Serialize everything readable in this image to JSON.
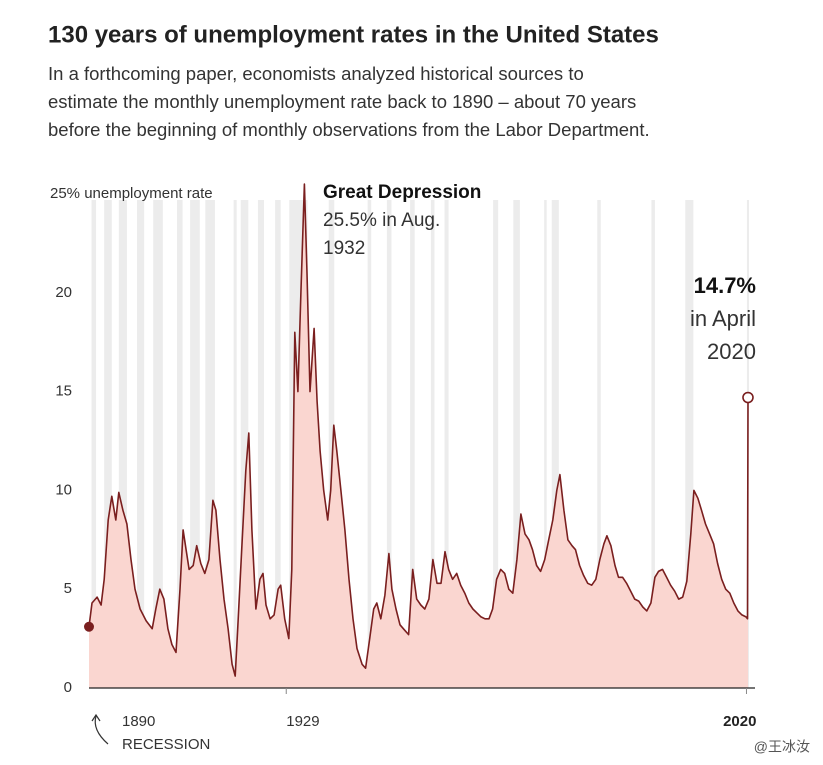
{
  "title": "130 years of unemployment rates in the United States",
  "subtitle": [
    "In a forthcoming paper, economists analyzed historical sources to",
    "estimate the monthly unemployment rate back to 1890 – about 70 years",
    "before the beginning of monthly observations from the Labor Department."
  ],
  "watermark": "@王冰汝",
  "chart_data": {
    "type": "area",
    "x": [
      1890.0,
      1890.6,
      1891.6,
      1892.4,
      1893.0,
      1893.8,
      1894.5,
      1895.3,
      1895.9,
      1896.7,
      1897.5,
      1898.3,
      1899.1,
      1900.1,
      1901.3,
      1902.5,
      1903.2,
      1904.0,
      1904.8,
      1905.6,
      1906.4,
      1907.2,
      1908.0,
      1908.6,
      1909.2,
      1909.8,
      1910.6,
      1911.3,
      1912.1,
      1912.9,
      1913.7,
      1914.5,
      1915.1,
      1915.9,
      1916.7,
      1917.5,
      1918.3,
      1918.9,
      1919.4,
      1920.2,
      1921.0,
      1921.6,
      1922.2,
      1923.0,
      1923.8,
      1924.4,
      1925.0,
      1925.8,
      1926.6,
      1927.4,
      1927.9,
      1928.7,
      1929.5,
      1930.1,
      1930.7,
      1931.3,
      1931.9,
      1932.6,
      1933.1,
      1933.7,
      1934.5,
      1935.1,
      1935.7,
      1936.4,
      1937.2,
      1937.8,
      1938.4,
      1939.0,
      1939.8,
      1940.6,
      1941.4,
      1942.2,
      1943.0,
      1944.0,
      1944.7,
      1945.5,
      1946.3,
      1946.9,
      1947.7,
      1948.5,
      1949.3,
      1949.9,
      1950.7,
      1951.5,
      1952.5,
      1953.2,
      1954.0,
      1954.8,
      1955.6,
      1956.4,
      1957.2,
      1958.0,
      1958.8,
      1959.6,
      1960.4,
      1961.1,
      1961.9,
      1962.7,
      1963.5,
      1964.3,
      1965.1,
      1965.9,
      1966.7,
      1967.5,
      1968.3,
      1969.1,
      1969.8,
      1970.6,
      1971.4,
      1972.2,
      1973.0,
      1973.8,
      1974.6,
      1975.4,
      1976.2,
      1977.0,
      1977.7,
      1978.5,
      1979.3,
      1980.1,
      1980.9,
      1981.7,
      1982.5,
      1983.1,
      1983.9,
      1984.7,
      1985.5,
      1986.2,
      1987.0,
      1987.8,
      1988.6,
      1989.4,
      1990.2,
      1991.0,
      1991.8,
      1992.4,
      1993.2,
      1994.0,
      1994.7,
      1995.5,
      1996.3,
      1997.1,
      1997.9,
      1998.7,
      1999.5,
      2000.3,
      2001.1,
      2001.9,
      2002.6,
      2003.4,
      2004.2,
      2005.0,
      2005.8,
      2006.6,
      2007.4,
      2008.2,
      2009.0,
      2009.6,
      2010.4,
      2011.1,
      2011.9,
      2012.7,
      2013.5,
      2014.3,
      2015.1,
      2015.9,
      2016.7,
      2017.5,
      2018.3,
      2019.1,
      2019.9,
      2020.2,
      2020.3
    ],
    "series": [
      {
        "color": "#7a1f1f",
        "fill": "#fad6d0",
        "values": [
          3.1,
          4.3,
          4.6,
          4.2,
          5.5,
          8.5,
          9.7,
          8.5,
          9.9,
          9.0,
          8.3,
          6.5,
          5.0,
          4.0,
          3.4,
          3.0,
          4.0,
          5.0,
          4.5,
          3.0,
          2.2,
          1.8,
          5.0,
          8.0,
          7.0,
          6.0,
          6.2,
          7.2,
          6.3,
          5.8,
          6.5,
          9.5,
          9.0,
          6.5,
          4.5,
          3.0,
          1.2,
          0.6,
          3.0,
          7.0,
          11.0,
          12.9,
          8.0,
          4.0,
          5.5,
          5.8,
          4.2,
          3.5,
          3.7,
          5.0,
          5.2,
          3.5,
          2.5,
          6.0,
          18.0,
          15.0,
          20.0,
          25.5,
          21.0,
          15.0,
          18.2,
          14.5,
          12.0,
          10.0,
          8.5,
          10.0,
          13.3,
          12.0,
          10.0,
          8.0,
          5.5,
          3.5,
          2.0,
          1.2,
          1.0,
          2.5,
          4.0,
          4.3,
          3.5,
          4.7,
          6.8,
          5.0,
          4.0,
          3.2,
          2.9,
          2.7,
          6.0,
          4.5,
          4.2,
          4.0,
          4.5,
          6.5,
          5.3,
          5.3,
          6.9,
          6.0,
          5.5,
          5.8,
          5.2,
          4.8,
          4.3,
          4.0,
          3.8,
          3.6,
          3.5,
          3.5,
          4.0,
          5.5,
          6.0,
          5.8,
          5.0,
          4.8,
          6.5,
          8.8,
          7.8,
          7.5,
          7.0,
          6.2,
          5.9,
          6.5,
          7.5,
          8.5,
          10.0,
          10.8,
          9.0,
          7.5,
          7.2,
          7.0,
          6.2,
          5.7,
          5.3,
          5.2,
          5.5,
          6.5,
          7.3,
          7.7,
          7.2,
          6.2,
          5.6,
          5.6,
          5.3,
          4.9,
          4.5,
          4.4,
          4.1,
          3.9,
          4.3,
          5.6,
          5.9,
          6.0,
          5.6,
          5.2,
          4.9,
          4.5,
          4.6,
          5.4,
          7.8,
          10.0,
          9.6,
          9.0,
          8.3,
          7.8,
          7.3,
          6.3,
          5.5,
          5.0,
          4.8,
          4.3,
          3.9,
          3.7,
          3.6,
          3.5,
          14.7
        ]
      }
    ],
    "recessions": {
      "color": "#ececec",
      "periods": [
        [
          1890.5,
          1891.4
        ],
        [
          1893.0,
          1894.5
        ],
        [
          1895.9,
          1897.5
        ],
        [
          1899.5,
          1900.9
        ],
        [
          1902.7,
          1904.6
        ],
        [
          1907.4,
          1908.5
        ],
        [
          1910.0,
          1911.9
        ],
        [
          1913.0,
          1914.9
        ],
        [
          1918.6,
          1919.2
        ],
        [
          1920.0,
          1921.5
        ],
        [
          1923.4,
          1924.6
        ],
        [
          1926.8,
          1927.9
        ],
        [
          1929.6,
          1933.2
        ],
        [
          1937.4,
          1938.5
        ],
        [
          1945.1,
          1945.8
        ],
        [
          1948.9,
          1949.8
        ],
        [
          1953.5,
          1954.4
        ],
        [
          1957.6,
          1958.3
        ],
        [
          1960.3,
          1961.1
        ],
        [
          1969.9,
          1970.9
        ],
        [
          1973.9,
          1975.2
        ],
        [
          1980.0,
          1980.5
        ],
        [
          1981.5,
          1982.9
        ],
        [
          1990.5,
          1991.2
        ],
        [
          2001.2,
          2001.9
        ],
        [
          2007.9,
          2009.5
        ],
        [
          2020.1,
          2020.3
        ]
      ]
    },
    "xlim": [
      1890,
      2020.5
    ],
    "ylim": [
      0,
      25
    ],
    "xticks": [
      1929,
      2020
    ],
    "yticks": [
      0,
      5,
      10,
      15,
      20,
      {
        "value": 25,
        "label": "25% unemployment rate"
      }
    ],
    "annotations": [
      {
        "lines": [
          "1890",
          "RECESSION"
        ]
      },
      {
        "lines": [
          "Great Depression",
          "25.5% in Aug.",
          "1932"
        ]
      },
      {
        "lines": [
          "14.7%",
          "in April",
          "2020"
        ]
      }
    ]
  }
}
